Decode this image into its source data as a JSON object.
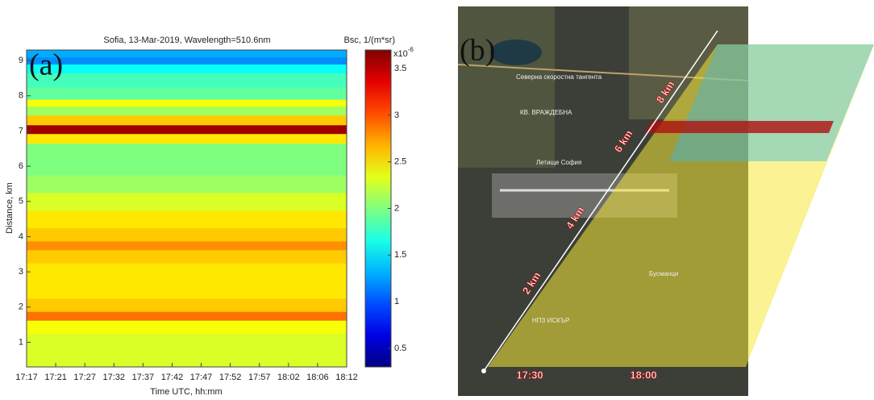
{
  "chart_data": {
    "type": "heatmap",
    "panel_label": "(a)",
    "title": "Sofia, 13-Mar-2019, Wavelength=510.6nm",
    "colorbar_title": "Bsc, 1/(m*sr)",
    "colorbar_multiplier": "x10",
    "colorbar_multiplier_exponent": "-6",
    "xlabel": "Time UTC, hh:mm",
    "ylabel": "Distance, km",
    "xticks": [
      "17:17",
      "17:21",
      "17:27",
      "17:32",
      "17:37",
      "17:42",
      "17:47",
      "17:52",
      "17:57",
      "18:02",
      "18:06",
      "18:12"
    ],
    "ylim": [
      0.3,
      9.3
    ],
    "yticks": [
      1,
      2,
      3,
      4,
      5,
      6,
      7,
      8,
      9
    ],
    "clim": [
      0.3,
      3.7
    ],
    "cticks": [
      0.5,
      1,
      1.5,
      2,
      2.5,
      3,
      3.5
    ],
    "y": [
      0.5,
      1,
      1.5,
      1.75,
      2,
      2.5,
      3,
      3.5,
      3.75,
      4,
      4.5,
      5,
      5.5,
      6,
      6.5,
      6.8,
      7.05,
      7.3,
      7.6,
      7.8,
      8,
      8.5,
      8.8,
      9,
      9.2
    ],
    "values": [
      2.3,
      2.3,
      2.4,
      2.9,
      2.6,
      2.5,
      2.5,
      2.6,
      2.8,
      2.6,
      2.5,
      2.3,
      2.1,
      2.0,
      2.0,
      2.5,
      3.6,
      2.6,
      2.1,
      2.4,
      1.9,
      1.8,
      1.6,
      1.2,
      1.3
    ]
  },
  "map": {
    "panel_label": "(b)",
    "distance_labels": [
      "2 km",
      "4 km",
      "6 km",
      "8 km"
    ],
    "time_labels": [
      "17:30",
      "18:00"
    ],
    "place_labels": [
      "Северна скоростна тангента",
      "КВ. ВРАЖДЕБНА",
      "Летище София",
      "Бусманци",
      "НПЗ ИСКЪР"
    ]
  }
}
